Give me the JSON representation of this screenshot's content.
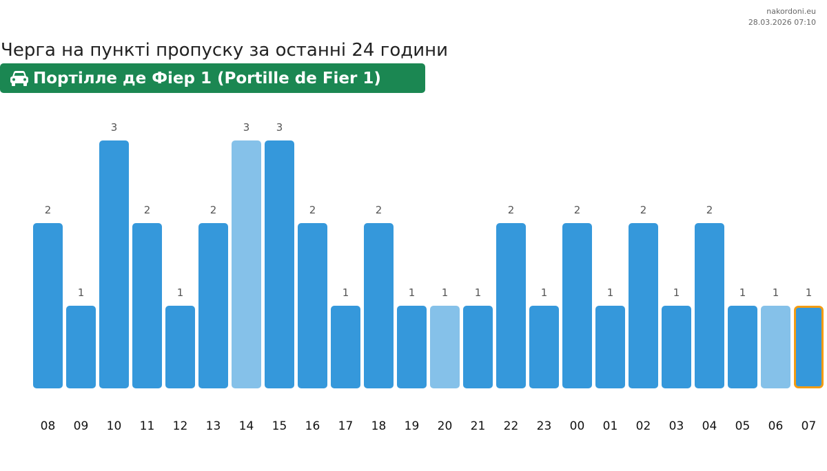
{
  "brand": {
    "site": "nakordoni.eu",
    "timestamp": "28.03.2026 07:10"
  },
  "header": {
    "title": "Черга на пункті пропуску за останні 24 години",
    "checkpoint": "Портілле де Фіер 1 (Portille de Fier 1)",
    "checkpoint_icon": "car-icon"
  },
  "colors": {
    "bar": "#3598db",
    "bar_light": "#85c1e9",
    "current_border": "#f39c12",
    "badge": "#1b8752"
  },
  "chart_data": {
    "type": "bar",
    "title": "Черга на пункті пропуску за останні 24 години",
    "xlabel": "",
    "ylabel": "",
    "categories": [
      "08",
      "09",
      "10",
      "11",
      "12",
      "13",
      "14",
      "15",
      "16",
      "17",
      "18",
      "19",
      "20",
      "21",
      "22",
      "23",
      "00",
      "01",
      "02",
      "03",
      "04",
      "05",
      "06",
      "07"
    ],
    "values": [
      2,
      1,
      3,
      2,
      1,
      2,
      3,
      3,
      2,
      1,
      2,
      1,
      1,
      1,
      2,
      1,
      2,
      1,
      2,
      1,
      2,
      1,
      1,
      1
    ],
    "highlight_light": [
      "14",
      "20",
      "06"
    ],
    "current": "07",
    "ylim": [
      0,
      3
    ],
    "grid": false
  }
}
